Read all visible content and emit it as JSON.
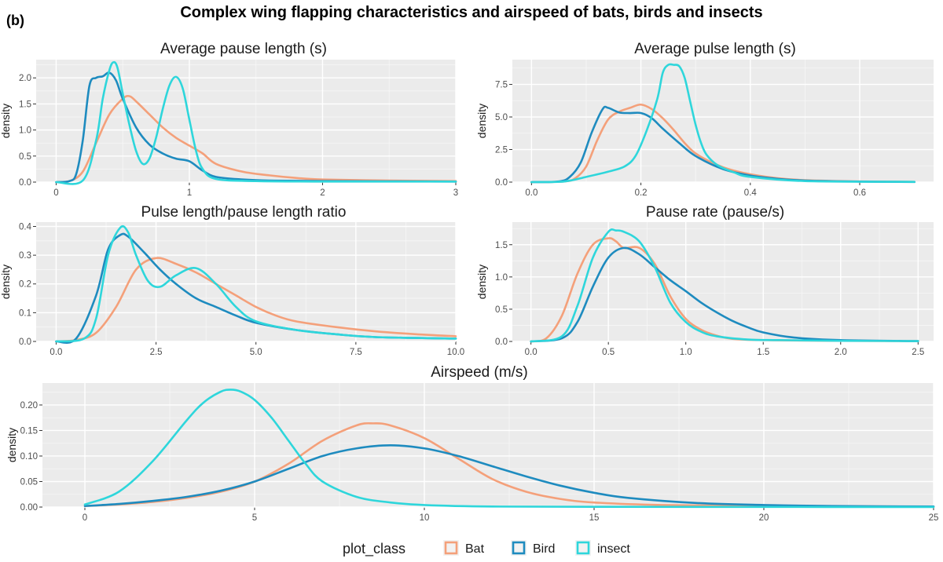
{
  "figure": {
    "panel_label": "(b)",
    "title": "Complex wing flapping characteristics and airspeed of bats, birds and insects"
  },
  "colors": {
    "Bat": "#F4A07A",
    "Bird": "#1E8BBF",
    "insect": "#2ED6DB"
  },
  "legend": {
    "title": "plot_class",
    "entries": [
      "Bat",
      "Bird",
      "insect"
    ]
  },
  "chart_data": [
    {
      "id": "pause",
      "type": "line",
      "title": "Average pause length (s)",
      "xlabel": "",
      "ylabel": "density",
      "xlim": [
        -0.15,
        3.0
      ],
      "ylim": [
        0,
        2.35
      ],
      "xticks": [
        0,
        1,
        2,
        3
      ],
      "xtick_labels": [
        "0",
        "1",
        "2",
        "3"
      ],
      "yticks": [
        0,
        0.5,
        1,
        1.5,
        2
      ],
      "ytick_labels": [
        "0.0",
        "0.5",
        "1.0",
        "1.5",
        "2.0"
      ],
      "series": [
        {
          "name": "Bat",
          "x": [
            0,
            0.1,
            0.2,
            0.3,
            0.4,
            0.5,
            0.55,
            0.6,
            0.7,
            0.8,
            0.9,
            1.0,
            1.1,
            1.2,
            1.4,
            1.6,
            1.8,
            2.0,
            2.5,
            3.0
          ],
          "y": [
            0.0,
            0.02,
            0.2,
            0.75,
            1.3,
            1.6,
            1.65,
            1.55,
            1.3,
            1.05,
            0.85,
            0.7,
            0.55,
            0.35,
            0.2,
            0.13,
            0.08,
            0.05,
            0.03,
            0.02
          ]
        },
        {
          "name": "Bird",
          "x": [
            0,
            0.1,
            0.15,
            0.2,
            0.25,
            0.3,
            0.35,
            0.4,
            0.45,
            0.5,
            0.6,
            0.7,
            0.8,
            0.9,
            1.0,
            1.1,
            1.2,
            1.4,
            1.6,
            2.0,
            3.0
          ],
          "y": [
            0.0,
            0.02,
            0.15,
            0.8,
            1.85,
            2.0,
            2.03,
            2.1,
            1.95,
            1.6,
            1.05,
            0.72,
            0.55,
            0.45,
            0.4,
            0.22,
            0.1,
            0.05,
            0.03,
            0.02,
            0.01
          ]
        },
        {
          "name": "insect",
          "x": [
            0,
            0.2,
            0.3,
            0.35,
            0.4,
            0.43,
            0.46,
            0.5,
            0.55,
            0.6,
            0.65,
            0.7,
            0.75,
            0.8,
            0.85,
            0.9,
            0.95,
            1.0,
            1.05,
            1.1,
            1.2,
            1.5,
            2.0,
            3.0
          ],
          "y": [
            0.0,
            0.03,
            0.8,
            1.6,
            2.15,
            2.3,
            2.2,
            1.7,
            1.1,
            0.6,
            0.35,
            0.45,
            0.85,
            1.4,
            1.85,
            2.02,
            1.8,
            1.2,
            0.6,
            0.25,
            0.06,
            0.02,
            0.01,
            0.01
          ]
        }
      ]
    },
    {
      "id": "pulse",
      "type": "line",
      "title": "Average pulse length (s)",
      "xlabel": "",
      "ylabel": "density",
      "xlim": [
        -0.035,
        0.735
      ],
      "ylim": [
        0,
        9.4
      ],
      "xticks": [
        0,
        0.2,
        0.4,
        0.6
      ],
      "xtick_labels": [
        "0.0",
        "0.2",
        "0.4",
        "0.6"
      ],
      "yticks": [
        0,
        2.5,
        5,
        7.5
      ],
      "ytick_labels": [
        "0.0",
        "2.5",
        "5.0",
        "7.5"
      ],
      "series": [
        {
          "name": "Bat",
          "x": [
            0,
            0.06,
            0.08,
            0.1,
            0.12,
            0.14,
            0.16,
            0.18,
            0.2,
            0.22,
            0.24,
            0.26,
            0.28,
            0.3,
            0.33,
            0.36,
            0.4,
            0.45,
            0.5,
            0.6,
            0.7
          ],
          "y": [
            0,
            0.05,
            0.3,
            1.2,
            3.2,
            4.8,
            5.4,
            5.7,
            5.95,
            5.6,
            4.9,
            4.0,
            3.0,
            2.2,
            1.5,
            1.0,
            0.6,
            0.3,
            0.15,
            0.05,
            0.02
          ]
        },
        {
          "name": "Bird",
          "x": [
            0,
            0.05,
            0.07,
            0.09,
            0.11,
            0.13,
            0.14,
            0.16,
            0.18,
            0.2,
            0.22,
            0.24,
            0.27,
            0.3,
            0.35,
            0.4,
            0.45,
            0.5,
            0.6,
            0.7
          ],
          "y": [
            0,
            0.05,
            0.4,
            1.5,
            3.8,
            5.6,
            5.7,
            5.35,
            5.3,
            5.3,
            4.9,
            4.1,
            3.0,
            2.0,
            1.0,
            0.5,
            0.25,
            0.12,
            0.04,
            0.01
          ]
        },
        {
          "name": "insect",
          "x": [
            0,
            0.06,
            0.1,
            0.14,
            0.17,
            0.19,
            0.21,
            0.23,
            0.24,
            0.25,
            0.26,
            0.27,
            0.28,
            0.29,
            0.3,
            0.31,
            0.32,
            0.34,
            0.37,
            0.4,
            0.5,
            0.7
          ],
          "y": [
            0,
            0.05,
            0.4,
            0.8,
            1.2,
            2.0,
            3.9,
            6.4,
            8.4,
            9.0,
            9.0,
            8.9,
            8.0,
            6.2,
            4.4,
            3.0,
            2.1,
            1.3,
            0.75,
            0.4,
            0.08,
            0.02
          ]
        }
      ]
    },
    {
      "id": "ratio",
      "type": "line",
      "title": "Pulse length/pause length ratio",
      "xlabel": "",
      "ylabel": "density",
      "xlim": [
        -0.5,
        10.0
      ],
      "ylim": [
        0,
        0.415
      ],
      "xticks": [
        0,
        2.5,
        5,
        7.5,
        10
      ],
      "xtick_labels": [
        "0.0",
        "2.5",
        "5.0",
        "7.5",
        "10.0"
      ],
      "yticks": [
        0,
        0.1,
        0.2,
        0.3,
        0.4
      ],
      "ytick_labels": [
        "0.0",
        "0.1",
        "0.2",
        "0.3",
        "0.4"
      ],
      "series": [
        {
          "name": "Bat",
          "x": [
            0,
            0.5,
            1.0,
            1.5,
            2.0,
            2.5,
            3.0,
            3.5,
            4.0,
            4.5,
            5.0,
            5.5,
            6.0,
            7.0,
            8.0,
            9.0,
            10.0
          ],
          "y": [
            0,
            0.005,
            0.03,
            0.12,
            0.25,
            0.29,
            0.27,
            0.24,
            0.2,
            0.16,
            0.12,
            0.09,
            0.07,
            0.05,
            0.035,
            0.025,
            0.018
          ]
        },
        {
          "name": "Bird",
          "x": [
            0,
            0.5,
            1.0,
            1.3,
            1.6,
            1.8,
            2.2,
            2.6,
            3.0,
            3.5,
            4.0,
            4.5,
            5.0,
            6.0,
            7.0,
            8.0,
            10.0
          ],
          "y": [
            0,
            0.01,
            0.16,
            0.32,
            0.37,
            0.365,
            0.31,
            0.25,
            0.2,
            0.15,
            0.12,
            0.09,
            0.065,
            0.04,
            0.025,
            0.015,
            0.01
          ]
        },
        {
          "name": "insect",
          "x": [
            0,
            0.7,
            1.0,
            1.3,
            1.6,
            1.8,
            2.0,
            2.3,
            2.6,
            3.0,
            3.5,
            4.0,
            4.5,
            5.0,
            6.0,
            7.0,
            8.0,
            10.0
          ],
          "y": [
            0,
            0.01,
            0.08,
            0.3,
            0.395,
            0.38,
            0.3,
            0.21,
            0.19,
            0.23,
            0.255,
            0.2,
            0.12,
            0.07,
            0.04,
            0.025,
            0.015,
            0.01
          ]
        }
      ]
    },
    {
      "id": "rate",
      "type": "line",
      "title": "Pause rate (pause/s)",
      "xlabel": "",
      "ylabel": "density",
      "xlim": [
        -0.12,
        2.6
      ],
      "ylim": [
        0,
        1.85
      ],
      "xticks": [
        0,
        0.5,
        1,
        1.5,
        2,
        2.5
      ],
      "xtick_labels": [
        "0.0",
        "0.5",
        "1.0",
        "1.5",
        "2.0",
        "2.5"
      ],
      "yticks": [
        0,
        0.5,
        1,
        1.5
      ],
      "ytick_labels": [
        "0.0",
        "0.5",
        "1.0",
        "1.5"
      ],
      "series": [
        {
          "name": "Bat",
          "x": [
            0,
            0.1,
            0.2,
            0.3,
            0.4,
            0.5,
            0.55,
            0.6,
            0.7,
            0.8,
            0.9,
            1.0,
            1.1,
            1.2,
            1.3,
            1.5,
            2.0,
            2.5
          ],
          "y": [
            0,
            0.05,
            0.4,
            1.05,
            1.5,
            1.6,
            1.55,
            1.45,
            1.45,
            1.2,
            0.7,
            0.35,
            0.18,
            0.09,
            0.04,
            0.02,
            0.01,
            0.005
          ]
        },
        {
          "name": "Bird",
          "x": [
            0,
            0.2,
            0.3,
            0.4,
            0.5,
            0.6,
            0.7,
            0.8,
            0.9,
            1.0,
            1.1,
            1.2,
            1.3,
            1.4,
            1.5,
            1.7,
            2.0,
            2.5
          ],
          "y": [
            0,
            0.05,
            0.3,
            0.85,
            1.3,
            1.45,
            1.35,
            1.15,
            0.95,
            0.78,
            0.6,
            0.45,
            0.32,
            0.22,
            0.14,
            0.06,
            0.02,
            0.005
          ]
        },
        {
          "name": "insect",
          "x": [
            0,
            0.2,
            0.3,
            0.4,
            0.5,
            0.55,
            0.6,
            0.7,
            0.8,
            0.9,
            1.0,
            1.1,
            1.2,
            1.4,
            1.6,
            2.0,
            2.5
          ],
          "y": [
            0,
            0.08,
            0.55,
            1.3,
            1.7,
            1.72,
            1.7,
            1.55,
            1.15,
            0.6,
            0.3,
            0.15,
            0.08,
            0.03,
            0.02,
            0.01,
            0.005
          ]
        }
      ]
    },
    {
      "id": "airspeed",
      "type": "line",
      "title": "Airspeed (m/s)",
      "xlabel": "",
      "ylabel": "density",
      "xlim": [
        -1.25,
        25.0
      ],
      "ylim": [
        0,
        0.243
      ],
      "xticks": [
        0,
        5,
        10,
        15,
        20,
        25
      ],
      "xtick_labels": [
        "0",
        "5",
        "10",
        "15",
        "20",
        "25"
      ],
      "yticks": [
        0,
        0.05,
        0.1,
        0.15,
        0.2
      ],
      "ytick_labels": [
        "0.00",
        "0.05",
        "0.10",
        "0.15",
        "0.20"
      ],
      "series": [
        {
          "name": "Bat",
          "x": [
            0,
            1,
            2,
            3,
            4,
            5,
            6,
            7,
            8,
            8.5,
            9,
            10,
            11,
            12,
            13,
            14,
            15,
            17,
            20,
            25
          ],
          "y": [
            0.002,
            0.005,
            0.01,
            0.018,
            0.03,
            0.05,
            0.085,
            0.13,
            0.16,
            0.164,
            0.16,
            0.135,
            0.095,
            0.055,
            0.03,
            0.016,
            0.009,
            0.004,
            0.002,
            0.001
          ]
        },
        {
          "name": "Bird",
          "x": [
            0,
            1,
            2,
            3,
            4,
            5,
            6,
            7,
            8,
            9,
            10,
            11,
            12,
            13,
            14,
            15,
            16,
            18,
            20,
            22,
            25
          ],
          "y": [
            0.002,
            0.006,
            0.012,
            0.02,
            0.032,
            0.05,
            0.075,
            0.1,
            0.115,
            0.121,
            0.115,
            0.1,
            0.08,
            0.06,
            0.042,
            0.028,
            0.018,
            0.008,
            0.004,
            0.002,
            0.001
          ]
        },
        {
          "name": "insect",
          "x": [
            0,
            1,
            2,
            3,
            3.5,
            4,
            4.3,
            4.6,
            5,
            5.5,
            6,
            6.5,
            7,
            8,
            9,
            10,
            12,
            15,
            20,
            25
          ],
          "y": [
            0.005,
            0.03,
            0.09,
            0.17,
            0.205,
            0.226,
            0.23,
            0.226,
            0.21,
            0.175,
            0.13,
            0.085,
            0.05,
            0.02,
            0.009,
            0.004,
            0.001,
            0.0005,
            0.0002,
            0.0001
          ]
        }
      ]
    }
  ]
}
